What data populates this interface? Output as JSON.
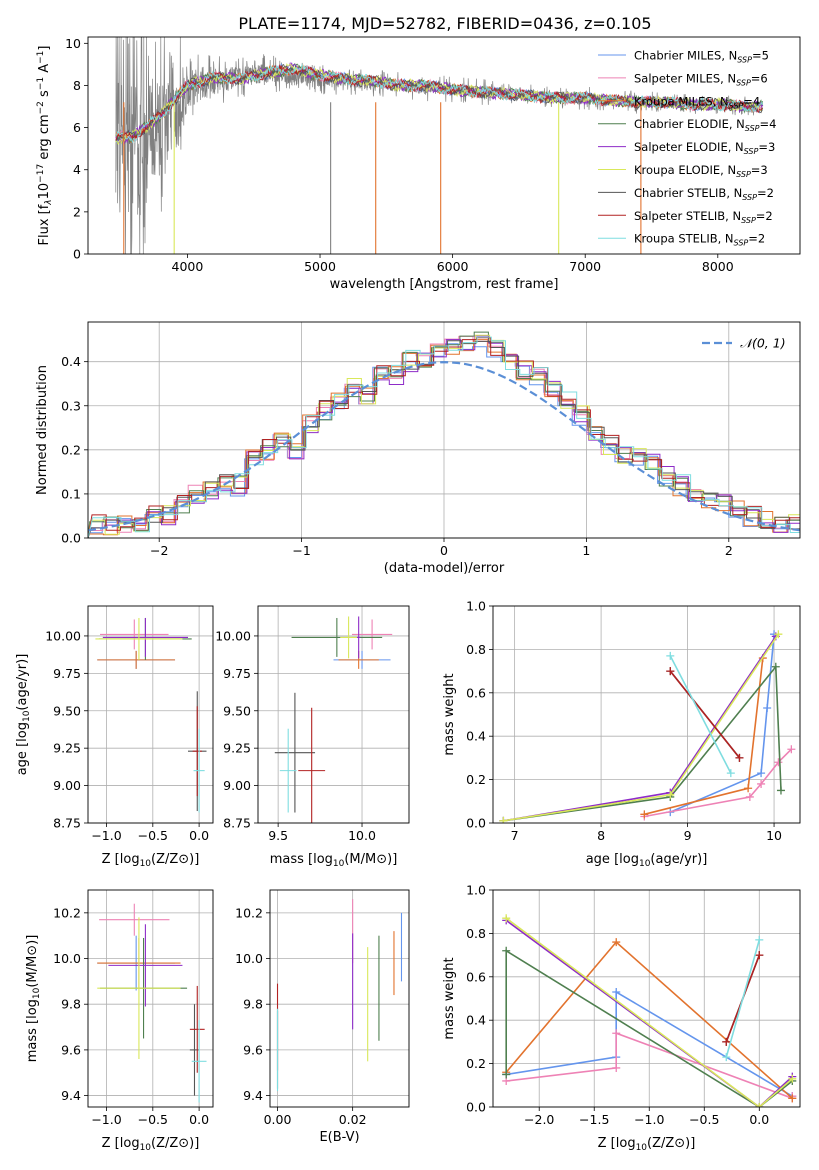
{
  "figure": {
    "title": "PLATE=1174, MJD=52782, FIBERID=0436, z=0.105"
  },
  "series_colors": {
    "Chabrier MILES": "#6495ED",
    "Salpeter MILES": "#EE82B5",
    "Kroupa MILES": "#E2732E",
    "Chabrier ELODIE": "#4F7F4F",
    "Salpeter ELODIE": "#8E2CC8",
    "Kroupa ELODIE": "#D9E85A",
    "Chabrier STELIB": "#555555",
    "Salpeter STELIB": "#B22222",
    "Kroupa STELIB": "#7FDDE0"
  },
  "chart_data": [
    {
      "id": "spectrum",
      "type": "line",
      "xlabel": "wavelength [Angstrom, rest frame]",
      "ylabel": "Flux [f_λ 10^-17 erg cm^-2 s^-1 A^-1]",
      "xlim": [
        3250,
        8620
      ],
      "ylim": [
        0,
        10.3
      ],
      "xticks": [
        4000,
        5000,
        6000,
        7000,
        8000
      ],
      "yticks": [
        0,
        2,
        4,
        6,
        8,
        10
      ],
      "grid": false,
      "legend_position": "upper-right",
      "legend": [
        {
          "model": "Chabrier MILES",
          "label": "Chabrier MILES, N",
          "n": "5"
        },
        {
          "model": "Salpeter MILES",
          "label": "Salpeter MILES, N",
          "n": "6"
        },
        {
          "model": "Kroupa MILES",
          "label": "Kroupa MILES, N",
          "n": "4"
        },
        {
          "model": "Chabrier ELODIE",
          "label": "Chabrier ELODIE, N",
          "n": "4"
        },
        {
          "model": "Salpeter ELODIE",
          "label": "Salpeter ELODIE, N",
          "n": "3"
        },
        {
          "model": "Kroupa ELODIE",
          "label": "Kroupa ELODIE, N",
          "n": "3"
        },
        {
          "model": "Chabrier STELIB",
          "label": "Chabrier STELIB, N",
          "n": "2"
        },
        {
          "model": "Salpeter STELIB",
          "label": "Salpeter STELIB, N",
          "n": "2"
        },
        {
          "model": "Kroupa STELIB",
          "label": "Kroupa STELIB, N",
          "n": "2"
        }
      ],
      "legend_subscript": "SSP",
      "data_series": {
        "color": "#808080",
        "x": [
          3460,
          3500,
          3550,
          3600,
          3650,
          3700,
          3750,
          3800,
          3850,
          3900,
          3950,
          4000,
          4100,
          4200,
          4300,
          4400,
          4500,
          4600,
          4700,
          4800,
          4900,
          5000,
          5200,
          5400,
          5600,
          5800,
          6000,
          6200,
          6400,
          6600,
          6800,
          7000,
          7200,
          7400,
          7600,
          7800,
          8000,
          8200,
          8340
        ],
        "y": [
          5.5,
          5.2,
          5.0,
          5.3,
          4.8,
          5.2,
          6.1,
          5.8,
          6.5,
          6.3,
          7.0,
          7.8,
          8.1,
          8.2,
          8.3,
          8.4,
          8.5,
          8.6,
          8.5,
          8.4,
          8.4,
          8.3,
          8.2,
          8.1,
          8.0,
          7.9,
          7.8,
          7.7,
          7.6,
          7.5,
          7.4,
          7.4,
          7.3,
          7.2,
          7.2,
          7.1,
          7.1,
          7.0,
          7.0
        ],
        "scatter": [
          4.0,
          4.0,
          4.0,
          4.0,
          4.0,
          3.5,
          3.0,
          2.8,
          2.5,
          2.0,
          1.5,
          1.2,
          1.0,
          0.8,
          0.7,
          0.6,
          0.6,
          0.6,
          0.5,
          0.5,
          0.5,
          0.5,
          0.4,
          0.4,
          0.4,
          0.4,
          0.4,
          0.4,
          0.35,
          0.35,
          0.35,
          0.35,
          0.35,
          0.35,
          0.3,
          0.3,
          0.3,
          0.3,
          0.3
        ]
      },
      "model_series": {
        "Kroupa STELIB": {
          "x": [
            3460,
            3600,
            3800,
            4000,
            4200,
            4400,
            4600,
            4800,
            5000,
            5200,
            5400,
            5600,
            5800,
            6000,
            6200,
            6400,
            6600,
            6800,
            7000,
            7200,
            7400,
            7600,
            7800,
            8000,
            8200,
            8340
          ],
          "y": [
            5.5,
            5.6,
            6.6,
            8.0,
            8.4,
            8.3,
            8.6,
            8.8,
            8.5,
            8.3,
            8.2,
            8.0,
            8.0,
            7.8,
            7.7,
            7.6,
            7.5,
            7.4,
            7.4,
            7.3,
            7.2,
            7.2,
            7.1,
            7.1,
            7.0,
            7.0
          ]
        }
      }
    },
    {
      "id": "residuals",
      "type": "line",
      "xlabel": "(data-model)/error",
      "ylabel": "Normed distribution",
      "xlim": [
        -2.5,
        2.5
      ],
      "ylim": [
        0,
        0.49
      ],
      "xticks": [
        -2,
        -1,
        0,
        1,
        2
      ],
      "yticks": [
        0.0,
        0.1,
        0.2,
        0.3,
        0.4
      ],
      "grid": true,
      "legend_position": "upper-right",
      "legend_label": "N(0,1)",
      "reference_curve": {
        "color": "#5B8FD6"
      },
      "histogram_edges": [
        -2.5,
        -2.4,
        -2.3,
        -2.2,
        -2.1,
        -2.0,
        -1.9,
        -1.8,
        -1.7,
        -1.6,
        -1.5,
        -1.4,
        -1.3,
        -1.2,
        -1.1,
        -1.0,
        -0.9,
        -0.8,
        -0.7,
        -0.6,
        -0.5,
        -0.4,
        -0.3,
        -0.2,
        -0.1,
        0.0,
        0.1,
        0.2,
        0.3,
        0.4,
        0.5,
        0.6,
        0.7,
        0.8,
        0.9,
        1.0,
        1.1,
        1.2,
        1.3,
        1.4,
        1.5,
        1.6,
        1.7,
        1.8,
        1.9,
        2.0,
        2.1,
        2.2,
        2.3,
        2.4,
        2.5
      ],
      "histogram_base": [
        0.03,
        0.03,
        0.03,
        0.03,
        0.05,
        0.05,
        0.08,
        0.1,
        0.11,
        0.12,
        0.12,
        0.18,
        0.2,
        0.22,
        0.2,
        0.26,
        0.29,
        0.31,
        0.34,
        0.32,
        0.37,
        0.37,
        0.4,
        0.4,
        0.43,
        0.44,
        0.44,
        0.45,
        0.43,
        0.4,
        0.38,
        0.37,
        0.34,
        0.31,
        0.28,
        0.24,
        0.21,
        0.19,
        0.18,
        0.17,
        0.14,
        0.12,
        0.1,
        0.09,
        0.08,
        0.07,
        0.05,
        0.04,
        0.03,
        0.03
      ]
    },
    {
      "id": "age_vs_Z",
      "type": "scatter",
      "xlabel": "Z [log10(Z/Z⊙)]",
      "ylabel": "age [log10(age/yr)]",
      "xlim": [
        -1.2,
        0.15
      ],
      "ylim": [
        8.75,
        10.2
      ],
      "xticks": [
        -1.0,
        -0.5,
        0.0
      ],
      "yticks": [
        8.75,
        9.0,
        9.25,
        9.5,
        9.75,
        10.0
      ],
      "grid": true,
      "points": [
        {
          "model": "Chabrier MILES",
          "x": -0.68,
          "y": 9.84,
          "xerr": 0.42,
          "yerr": 0.06
        },
        {
          "model": "Salpeter MILES",
          "x": -0.7,
          "y": 10.01,
          "xerr": 0.37,
          "yerr": 0.1
        },
        {
          "model": "Kroupa MILES",
          "x": -0.68,
          "y": 9.84,
          "xerr": 0.42,
          "yerr": 0.06
        },
        {
          "model": "Chabrier ELODIE",
          "x": -0.58,
          "y": 9.98,
          "xerr": 0.5,
          "yerr": 0.14
        },
        {
          "model": "Salpeter ELODIE",
          "x": -0.58,
          "y": 9.99,
          "xerr": 0.46,
          "yerr": 0.13
        },
        {
          "model": "Kroupa ELODIE",
          "x": -0.65,
          "y": 9.98,
          "xerr": 0.47,
          "yerr": 0.14
        },
        {
          "model": "Chabrier STELIB",
          "x": -0.02,
          "y": 9.23,
          "xerr": 0.1,
          "yerr": 0.4
        },
        {
          "model": "Salpeter STELIB",
          "x": -0.02,
          "y": 9.23,
          "xerr": 0.05,
          "yerr": 0.3
        },
        {
          "model": "Kroupa STELIB",
          "x": 0.0,
          "y": 9.1,
          "xerr": 0.06,
          "yerr": 0.28
        }
      ]
    },
    {
      "id": "age_vs_mass",
      "type": "scatter",
      "xlabel": "mass [log10(M/M⊙)]",
      "ylabel": "",
      "xlim": [
        9.38,
        10.28
      ],
      "ylim": [
        8.75,
        10.2
      ],
      "xticks": [
        9.5,
        10.0
      ],
      "yticks": [
        8.75,
        9.0,
        9.25,
        9.5,
        9.75,
        10.0
      ],
      "grid": true,
      "points": [
        {
          "model": "Chabrier MILES",
          "x": 10.0,
          "y": 9.84,
          "xerr": 0.17,
          "yerr": 0.06
        },
        {
          "model": "Salpeter MILES",
          "x": 10.06,
          "y": 10.01,
          "xerr": 0.12,
          "yerr": 0.1
        },
        {
          "model": "Kroupa MILES",
          "x": 9.98,
          "y": 9.84,
          "xerr": 0.12,
          "yerr": 0.06
        },
        {
          "model": "Chabrier ELODIE",
          "x": 9.85,
          "y": 9.99,
          "xerr": 0.27,
          "yerr": 0.13
        },
        {
          "model": "Salpeter ELODIE",
          "x": 9.98,
          "y": 9.99,
          "xerr": 0.01,
          "yerr": 0.14
        },
        {
          "model": "Kroupa ELODIE",
          "x": 9.92,
          "y": 9.99,
          "xerr": 0.05,
          "yerr": 0.14
        },
        {
          "model": "Chabrier STELIB",
          "x": 9.6,
          "y": 9.22,
          "xerr": 0.12,
          "yerr": 0.4
        },
        {
          "model": "Salpeter STELIB",
          "x": 9.7,
          "y": 9.1,
          "xerr": 0.08,
          "yerr": 0.42
        },
        {
          "model": "Kroupa STELIB",
          "x": 9.56,
          "y": 9.1,
          "xerr": 0.05,
          "yerr": 0.28
        }
      ]
    },
    {
      "id": "weight_vs_age",
      "type": "line",
      "xlabel": "age [log10(age/yr)]",
      "ylabel": "mass weight",
      "xlim": [
        6.75,
        10.3
      ],
      "ylim": [
        0,
        1.0
      ],
      "xticks": [
        7,
        8,
        9,
        10
      ],
      "yticks": [
        0.0,
        0.2,
        0.4,
        0.6,
        0.8,
        1.0
      ],
      "grid": true,
      "series": [
        {
          "model": "Chabrier MILES",
          "x": [
            8.8,
            9.85,
            9.92,
            10.0
          ],
          "y": [
            0.05,
            0.23,
            0.53,
            0.87
          ]
        },
        {
          "model": "Salpeter MILES",
          "x": [
            8.5,
            9.72,
            9.85,
            10.05,
            10.2
          ],
          "y": [
            0.03,
            0.12,
            0.18,
            0.28,
            0.34
          ]
        },
        {
          "model": "Kroupa MILES",
          "x": [
            8.5,
            9.7,
            9.87
          ],
          "y": [
            0.04,
            0.16,
            0.76
          ]
        },
        {
          "model": "Chabrier ELODIE",
          "x": [
            6.87,
            8.8,
            10.02,
            10.08
          ],
          "y": [
            0.01,
            0.12,
            0.72,
            0.15
          ]
        },
        {
          "model": "Salpeter ELODIE",
          "x": [
            6.87,
            8.8,
            10.02
          ],
          "y": [
            0.01,
            0.14,
            0.86
          ]
        },
        {
          "model": "Kroupa ELODIE",
          "x": [
            6.87,
            8.8,
            10.05
          ],
          "y": [
            0.01,
            0.13,
            0.87
          ]
        },
        {
          "model": "Chabrier STELIB",
          "x": [
            8.8,
            9.6
          ],
          "y": [
            0.7,
            0.3
          ]
        },
        {
          "model": "Salpeter STELIB",
          "x": [
            8.8,
            9.6
          ],
          "y": [
            0.7,
            0.3
          ]
        },
        {
          "model": "Kroupa STELIB",
          "x": [
            8.8,
            9.5
          ],
          "y": [
            0.77,
            0.23
          ]
        }
      ]
    },
    {
      "id": "mass_vs_Z",
      "type": "scatter",
      "xlabel": "Z [log10(Z/Z⊙)]",
      "ylabel": "mass [log10(M/M⊙)]",
      "xlim": [
        -1.2,
        0.15
      ],
      "ylim": [
        9.35,
        10.3
      ],
      "xticks": [
        -1.0,
        -0.5,
        0.0
      ],
      "yticks": [
        9.4,
        9.6,
        9.8,
        10.0,
        10.2
      ],
      "grid": true,
      "points": [
        {
          "model": "Chabrier MILES",
          "x": -0.68,
          "y": 9.98,
          "xerr": 0.42,
          "yerr": 0.12
        },
        {
          "model": "Salpeter MILES",
          "x": -0.7,
          "y": 10.17,
          "xerr": 0.38,
          "yerr": 0.07
        },
        {
          "model": "Kroupa MILES",
          "x": -0.65,
          "y": 9.98,
          "xerr": 0.45,
          "yerr": 0.11
        },
        {
          "model": "Chabrier ELODIE",
          "x": -0.6,
          "y": 9.87,
          "xerr": 0.47,
          "yerr": 0.22
        },
        {
          "model": "Salpeter ELODIE",
          "x": -0.58,
          "y": 9.97,
          "xerr": 0.4,
          "yerr": 0.18
        },
        {
          "model": "Kroupa ELODIE",
          "x": -0.65,
          "y": 9.87,
          "xerr": 0.45,
          "yerr": 0.31
        },
        {
          "model": "Chabrier STELIB",
          "x": -0.05,
          "y": 9.6,
          "xerr": 0.05,
          "yerr": 0.2
        },
        {
          "model": "Salpeter STELIB",
          "x": -0.02,
          "y": 9.69,
          "xerr": 0.08,
          "yerr": 0.19
        },
        {
          "model": "Kroupa STELIB",
          "x": 0.0,
          "y": 9.55,
          "xerr": 0.08,
          "yerr": 0.18
        }
      ]
    },
    {
      "id": "mass_vs_ebv",
      "type": "scatter",
      "xlabel": "E(B-V)",
      "ylabel": "",
      "xlim": [
        -0.002,
        0.035
      ],
      "ylim": [
        9.35,
        10.3
      ],
      "xticks": [
        0.0,
        0.02
      ],
      "yticks": [
        9.4,
        9.6,
        9.8,
        10.0,
        10.2
      ],
      "grid": true,
      "points": [
        {
          "model": "Chabrier MILES",
          "x": 0.033,
          "y": 10.05,
          "yerr": 0.15
        },
        {
          "model": "Salpeter MILES",
          "x": 0.02,
          "y": 10.12,
          "yerr": 0.14
        },
        {
          "model": "Kroupa MILES",
          "x": 0.031,
          "y": 9.98,
          "yerr": 0.14
        },
        {
          "model": "Chabrier ELODIE",
          "x": 0.027,
          "y": 9.87,
          "yerr": 0.23
        },
        {
          "model": "Salpeter ELODIE",
          "x": 0.02,
          "y": 9.9,
          "yerr": 0.21
        },
        {
          "model": "Kroupa ELODIE",
          "x": 0.024,
          "y": 9.8,
          "yerr": 0.25
        },
        {
          "model": "Chabrier STELIB",
          "x": 0.0,
          "y": 9.6,
          "yerr": 0.17
        },
        {
          "model": "Salpeter STELIB",
          "x": 0.0,
          "y": 9.7,
          "yerr": 0.19
        },
        {
          "model": "Kroupa STELIB",
          "x": 0.0,
          "y": 9.6,
          "yerr": 0.18
        }
      ]
    },
    {
      "id": "weight_vs_Z",
      "type": "line",
      "xlabel": "Z [log10(Z/Z⊙)]",
      "ylabel": "mass weight",
      "xlim": [
        -2.42,
        0.37
      ],
      "ylim": [
        0,
        1.0
      ],
      "xticks": [
        -2.0,
        -1.5,
        -1.0,
        -0.5,
        0.0
      ],
      "yticks": [
        0.0,
        0.2,
        0.4,
        0.6,
        0.8,
        1.0
      ],
      "grid": true,
      "series": [
        {
          "model": "Chabrier MILES",
          "x": [
            -2.3,
            -1.3,
            -1.3,
            0.3
          ],
          "y": [
            0.15,
            0.23,
            0.53,
            0.05
          ]
        },
        {
          "model": "Salpeter MILES",
          "x": [
            -2.3,
            -1.3,
            -1.3,
            0.3,
            0.3
          ],
          "y": [
            0.12,
            0.18,
            0.34,
            0.04,
            0.05
          ]
        },
        {
          "model": "Kroupa MILES",
          "x": [
            -2.3,
            -1.3,
            0.3
          ],
          "y": [
            0.16,
            0.76,
            0.04
          ]
        },
        {
          "model": "Chabrier ELODIE",
          "x": [
            -2.3,
            -2.3,
            0.0,
            0.3
          ],
          "y": [
            0.15,
            0.72,
            0.0,
            0.12
          ]
        },
        {
          "model": "Salpeter ELODIE",
          "x": [
            -2.3,
            0.0,
            0.3
          ],
          "y": [
            0.86,
            0.0,
            0.14
          ]
        },
        {
          "model": "Kroupa ELODIE",
          "x": [
            -2.3,
            0.0,
            0.3
          ],
          "y": [
            0.87,
            0.0,
            0.13
          ]
        },
        {
          "model": "Chabrier STELIB",
          "x": [
            -0.3,
            0.0
          ],
          "y": [
            0.3,
            0.7
          ]
        },
        {
          "model": "Salpeter STELIB",
          "x": [
            -0.3,
            0.0
          ],
          "y": [
            0.3,
            0.7
          ]
        },
        {
          "model": "Kroupa STELIB",
          "x": [
            -0.3,
            0.0
          ],
          "y": [
            0.23,
            0.77
          ]
        }
      ]
    }
  ]
}
